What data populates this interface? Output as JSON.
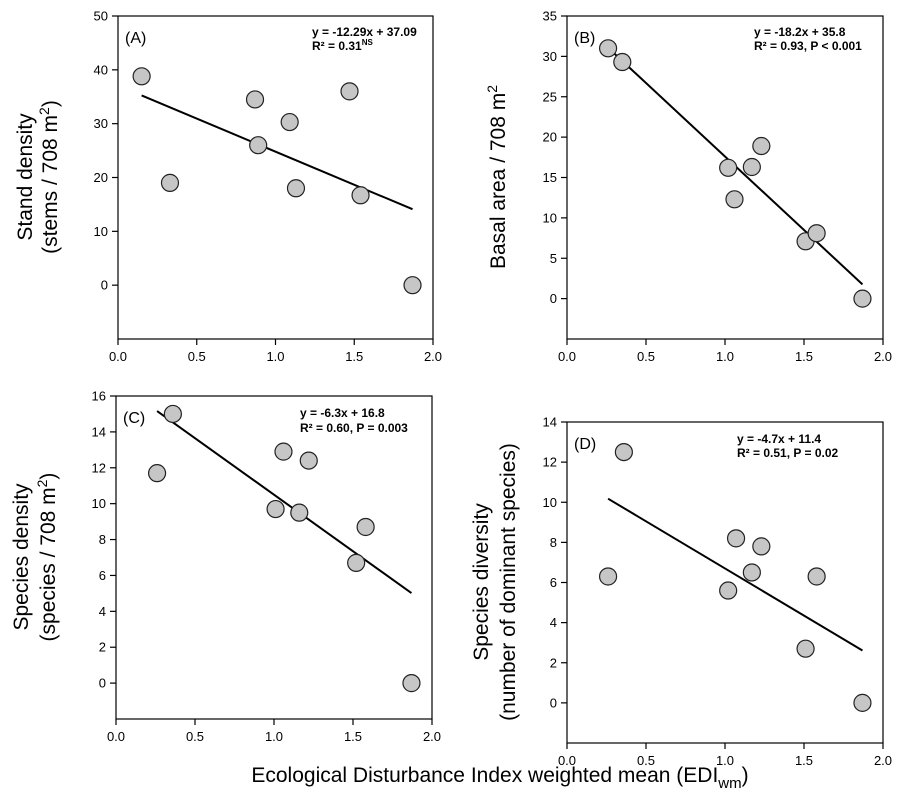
{
  "figure": {
    "x_title": "Ecological Disturbance Index weighted mean (EDI",
    "x_title_sub": "wm",
    "x_title_end": ")"
  },
  "chart_data": [
    {
      "type": "scatter",
      "panel_label": "(A)",
      "ylabel_line1": "Stand density",
      "ylabel_line2": "(stems / 708 m",
      "ylabel_sup": "2",
      "ylabel_end": ")",
      "equation": "y = -12.29x + 37.09",
      "r2_text": "R² = 0.31",
      "r2_sup": "NS",
      "xlim": [
        0,
        2
      ],
      "ylim": [
        -10,
        50
      ],
      "xticks": [
        0,
        0.5,
        1,
        1.5,
        2
      ],
      "xtick_labels": [
        "0.0",
        "0.5",
        "1.0",
        "1.5",
        "2.0"
      ],
      "yticks": [
        0,
        10,
        20,
        30,
        40,
        50
      ],
      "ytick_labels": [
        "0",
        "10",
        "20",
        "30",
        "40",
        "50"
      ],
      "x": [
        0.15,
        0.33,
        0.87,
        0.89,
        1.09,
        1.13,
        1.47,
        1.54,
        1.87
      ],
      "y": [
        38.8,
        19,
        34.5,
        26,
        30.3,
        18,
        36,
        16.7,
        0
      ],
      "fit": {
        "slope": -12.29,
        "intercept": 37.09,
        "x_range": [
          0.15,
          1.87
        ]
      }
    },
    {
      "type": "scatter",
      "panel_label": "(B)",
      "ylabel_line1": "Basal area / 708 m",
      "ylabel_sup": "2",
      "equation": "y = -18.2x + 35.8",
      "r2_text": "R² = 0.93, P < 0.001",
      "xlim": [
        0,
        2
      ],
      "ylim": [
        -5,
        35
      ],
      "xticks": [
        0,
        0.5,
        1,
        1.5,
        2
      ],
      "xtick_labels": [
        "0.0",
        "0.5",
        "1.0",
        "1.5",
        "2.0"
      ],
      "yticks": [
        0,
        5,
        10,
        15,
        20,
        25,
        30,
        35
      ],
      "ytick_labels": [
        "0",
        "5",
        "10",
        "15",
        "20",
        "25",
        "30",
        "35"
      ],
      "x": [
        0.26,
        0.35,
        1.02,
        1.06,
        1.17,
        1.23,
        1.51,
        1.58,
        1.87
      ],
      "y": [
        31,
        29.3,
        16.2,
        12.3,
        16.3,
        18.9,
        7.1,
        8.1,
        0
      ],
      "fit": {
        "slope": -18.2,
        "intercept": 35.8,
        "x_range": [
          0.26,
          1.87
        ]
      }
    },
    {
      "type": "scatter",
      "panel_label": "(C)",
      "ylabel_line1": "Species density",
      "ylabel_line2": "(species / 708 m",
      "ylabel_sup": "2",
      "ylabel_end": ")",
      "equation": "y = -6.3x + 16.8",
      "r2_text": "R² = 0.60, P = 0.003",
      "xlim": [
        0,
        2
      ],
      "ylim": [
        -2,
        16
      ],
      "xticks": [
        0,
        0.5,
        1,
        1.5,
        2
      ],
      "xtick_labels": [
        "0.0",
        "0.5",
        "1.0",
        "1.5",
        "2.0"
      ],
      "yticks": [
        0,
        2,
        4,
        6,
        8,
        10,
        12,
        14,
        16
      ],
      "ytick_labels": [
        "0",
        "2",
        "4",
        "6",
        "8",
        "10",
        "12",
        "14",
        "16"
      ],
      "x": [
        0.26,
        0.36,
        1.01,
        1.06,
        1.16,
        1.22,
        1.52,
        1.58,
        1.87
      ],
      "y": [
        11.7,
        15,
        9.7,
        12.9,
        9.5,
        12.4,
        6.7,
        8.7,
        0
      ],
      "fit": {
        "slope": -6.3,
        "intercept": 16.8,
        "x_range": [
          0.26,
          1.87
        ]
      }
    },
    {
      "type": "scatter",
      "panel_label": "(D)",
      "ylabel_line1": "Species diversity",
      "ylabel_line2": "(number of dominant species)",
      "equation": "y = -4.7x + 11.4",
      "r2_text": "R² = 0.51, P = 0.02",
      "xlim": [
        0,
        2
      ],
      "ylim": [
        -2,
        14
      ],
      "xticks": [
        0,
        0.5,
        1,
        1.5,
        2
      ],
      "xtick_labels": [
        "0.0",
        "0.5",
        "1.0",
        "1.5",
        "2.0"
      ],
      "yticks": [
        0,
        2,
        4,
        6,
        8,
        10,
        12,
        14
      ],
      "ytick_labels": [
        "0",
        "2",
        "4",
        "6",
        "8",
        "10",
        "12",
        "14"
      ],
      "x": [
        0.26,
        0.36,
        1.02,
        1.07,
        1.17,
        1.23,
        1.51,
        1.58,
        1.87
      ],
      "y": [
        6.3,
        12.5,
        5.6,
        8.2,
        6.5,
        7.8,
        2.7,
        6.3,
        0
      ],
      "fit": {
        "slope": -4.7,
        "intercept": 11.4,
        "x_range": [
          0.26,
          1.87
        ]
      }
    }
  ]
}
